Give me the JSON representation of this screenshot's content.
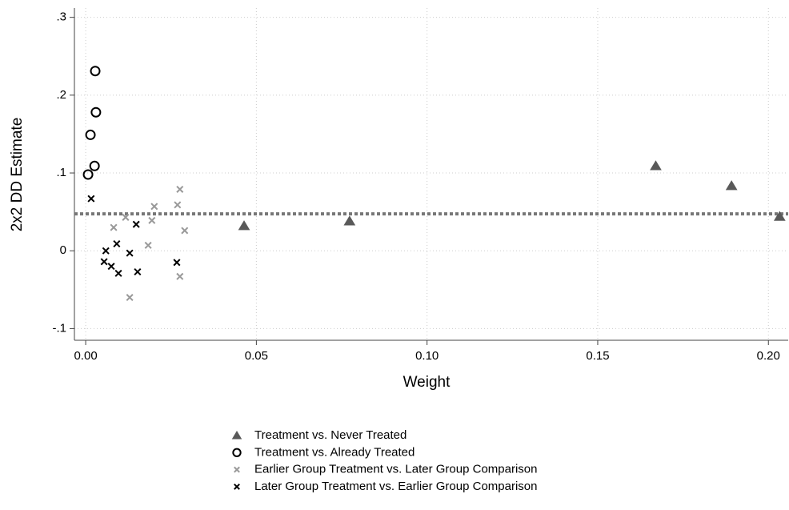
{
  "chart_data": {
    "type": "scatter",
    "x_label": "Weight",
    "y_label": "2x2 DD Estimate",
    "xlim": [
      -0.0033,
      0.2058
    ],
    "ylim": [
      -0.115,
      0.312
    ],
    "xticks": [
      {
        "value": 0,
        "label": "0.00"
      },
      {
        "value": 0.05,
        "label": "0.05"
      },
      {
        "value": 0.1,
        "label": "0.10"
      },
      {
        "value": 0.15,
        "label": "0.15"
      },
      {
        "value": 0.2,
        "label": "0.20"
      }
    ],
    "yticks": [
      {
        "value": -0.1,
        "label": "-.1"
      },
      0,
      {
        "value": 0.1,
        "label": ".1"
      },
      {
        "value": 0.2,
        "label": ".2"
      },
      {
        "value": 0.3,
        "label": ".3"
      }
    ],
    "grid": true,
    "hline": 0.0474,
    "series": [
      {
        "name": "Treatment vs. Never Treated",
        "color": "#595959",
        "marker": "triangle",
        "x": [
          0.0464,
          0.0773,
          0.167,
          0.1892,
          0.2033
        ],
        "values": [
          0.032,
          0.038,
          0.109,
          0.0835,
          0.044
        ]
      },
      {
        "name": "Treatment vs. Already Treated",
        "color": "#000000",
        "marker": "circle",
        "x": [
          0.0028,
          0.003,
          0.0014,
          0.0026,
          0.0007
        ],
        "values": [
          0.231,
          0.178,
          0.149,
          0.109,
          0.098
        ]
      },
      {
        "name": "Earlier Group Treatment vs. Later Group Comparison",
        "color": "#999999",
        "marker": "x",
        "x": [
          0.0082,
          0.0117,
          0.0201,
          0.0194,
          0.0183,
          0.0276,
          0.0269,
          0.029,
          0.0276,
          0.0129
        ],
        "values": [
          0.03,
          0.043,
          0.057,
          0.039,
          0.007,
          0.079,
          0.059,
          0.026,
          -0.033,
          -0.06
        ]
      },
      {
        "name": "Later Group Treatment vs. Earlier Group Comparison",
        "color": "#000000",
        "marker": "x",
        "x": [
          0.0016,
          0.0148,
          0.0091,
          0.0059,
          0.0054,
          0.0075,
          0.0096,
          0.0129,
          0.0152,
          0.0267
        ],
        "values": [
          0.067,
          0.034,
          0.009,
          0.0,
          -0.014,
          -0.02,
          -0.029,
          -0.003,
          -0.027,
          -0.015
        ]
      }
    ]
  }
}
